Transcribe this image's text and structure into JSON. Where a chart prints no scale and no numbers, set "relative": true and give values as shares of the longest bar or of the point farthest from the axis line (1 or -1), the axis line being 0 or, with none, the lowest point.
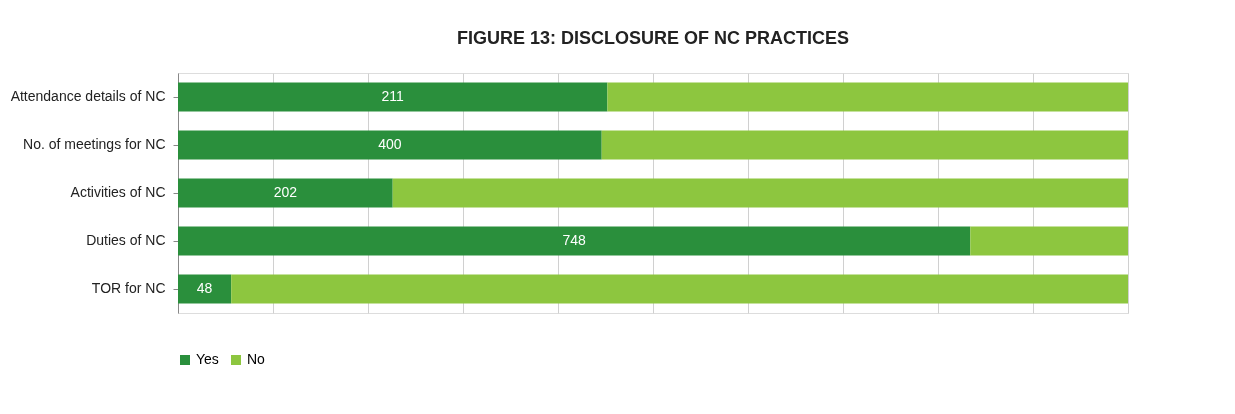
{
  "chart_data": {
    "type": "bar",
    "title": "FIGURE 13: DISCLOSURE OF NC PRACTICES",
    "orientation": "horizontal",
    "stacked": true,
    "relative": true,
    "categories": [
      "Attendance details of NC",
      "No. of meetings for NC",
      "Activities of NC",
      "Duties of NC",
      "TOR for NC"
    ],
    "series": [
      {
        "name": "Yes",
        "color": "#2a8f3c",
        "values": [
          0.452,
          0.446,
          0.226,
          0.834,
          0.056
        ]
      },
      {
        "name": "No",
        "color": "#8dc63f",
        "values": [
          0.548,
          0.554,
          0.774,
          0.166,
          0.944
        ]
      }
    ],
    "annotations": [
      {
        "text": "211",
        "x": 0.226,
        "y": "Attendance details of NC"
      },
      {
        "text": "400",
        "x": 0.223,
        "y": "No. of meetings for NC"
      },
      {
        "text": "202",
        "x": 0.113,
        "y": "Activities of NC"
      },
      {
        "text": "748",
        "x": 0.417,
        "y": "Duties of NC"
      },
      {
        "text": "48",
        "x": 0.028,
        "y": "TOR for NC"
      }
    ],
    "grid": "x",
    "legend": "bottom"
  }
}
